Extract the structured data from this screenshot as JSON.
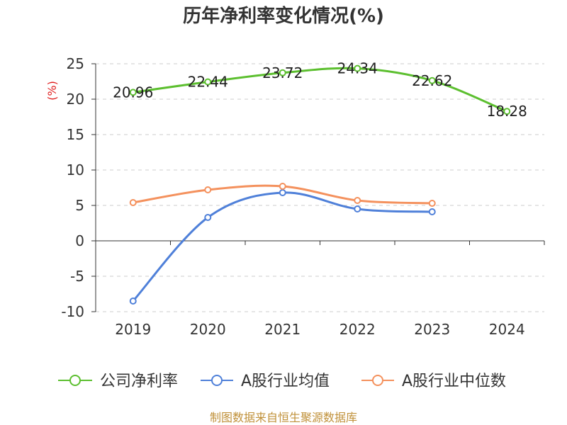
{
  "source_note": "制图数据来自恒生聚源数据库",
  "colors": {
    "title": "#333333",
    "axis": "#333333",
    "grid": "#cccccc",
    "ylabel": "#e02020",
    "data_label": "#1f1f1f",
    "source_note": "#c0913a"
  },
  "chart_data": {
    "type": "line",
    "title": "历年净利率变化情况(%)",
    "ylabel": "(%)",
    "categories": [
      "2019",
      "2020",
      "2021",
      "2022",
      "2023",
      "2024"
    ],
    "ylim": [
      -10,
      25
    ],
    "yticks": [
      25,
      20,
      15,
      10,
      5,
      0,
      -5,
      -10
    ],
    "grid": true,
    "legend": "bottom",
    "smooth": true,
    "series": [
      {
        "name": "公司净利率",
        "color": "#5cbf2f",
        "values": [
          20.96,
          22.44,
          23.72,
          24.34,
          22.62,
          18.28
        ],
        "show_labels": true
      },
      {
        "name": "A股行业均值",
        "color": "#4f80d9",
        "values": [
          -8.5,
          3.3,
          6.8,
          4.5,
          4.1,
          null
        ],
        "show_labels": false
      },
      {
        "name": "A股行业中位数",
        "color": "#f4915d",
        "values": [
          5.4,
          7.2,
          7.7,
          5.7,
          5.3,
          null
        ],
        "show_labels": false
      }
    ]
  }
}
